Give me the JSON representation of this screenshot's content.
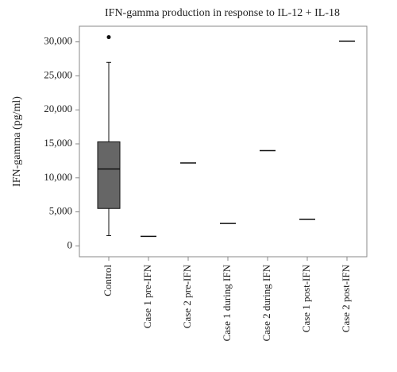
{
  "chart_data": {
    "type": "box",
    "title": "IFN-gamma production in response to IL-12 + IL-18",
    "y_label": "IFN-gamma (pg/ml)",
    "categories": [
      "Control",
      "Case 1 pre-IFN",
      "Case 2 pre-IFN",
      "Case 1 during IFN",
      "Case 2 during IFN",
      "Case 1 post-IFN",
      "Case 2 post-IFN"
    ],
    "boxes": [
      {
        "whisker_low": 1500,
        "q1": 5500,
        "median": 11300,
        "q3": 15300,
        "whisker_high": 27000,
        "outliers": [
          30700
        ]
      },
      {
        "median": 1400
      },
      {
        "median": 12200
      },
      {
        "median": 3300
      },
      {
        "median": 14000
      },
      {
        "median": 3900
      },
      {
        "median": 30100
      }
    ],
    "box_color": "#666666",
    "ylim": [
      -1600,
      32300
    ],
    "yticks": [
      0,
      {
        "value": 5000,
        "label": "5,000"
      },
      {
        "value": 10000,
        "label": "10,000"
      },
      {
        "value": 15000,
        "label": "15,000"
      },
      {
        "value": 20000,
        "label": "20,000"
      },
      {
        "value": 25000,
        "label": "25,000"
      },
      {
        "value": 30000,
        "label": "30,000"
      }
    ]
  }
}
